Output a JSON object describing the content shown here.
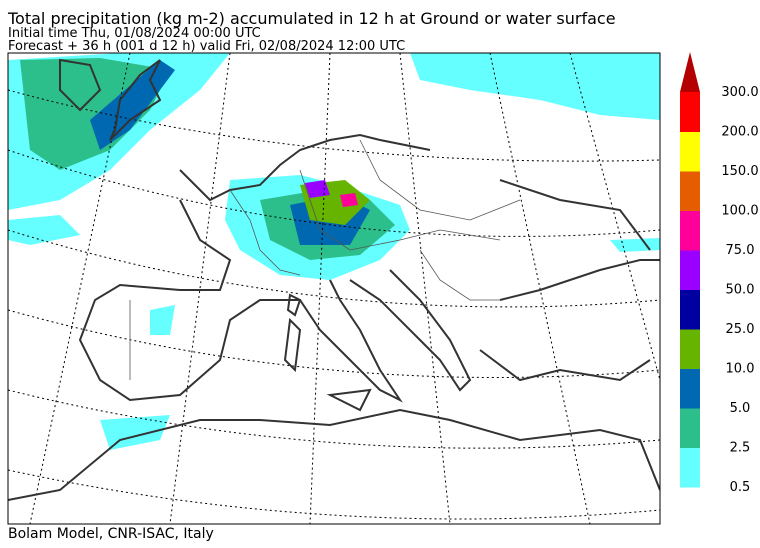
{
  "header": {
    "title": "Total precipitation (kg m-2) accumulated in  12 h at Ground or water surface",
    "line1": "Initial time  Thu, 01/08/2024  00:00 UTC",
    "line2": "Forecast  +  36 h  (001 d 12 h)  valid Fri, 02/08/2024 12:00 UTC"
  },
  "colorbar": {
    "levels": [
      "0.5",
      "2.5",
      "5.0",
      "10.0",
      "25.0",
      "50.0",
      "75.0",
      "100.0",
      "150.0",
      "200.0",
      "300.0"
    ],
    "colors": [
      "#66ffff",
      "#2cbf8c",
      "#0068b0",
      "#66b300",
      "#0000a0",
      "#9900ff",
      "#ff0099",
      "#e65c00",
      "#ffff00",
      "#ff0000"
    ],
    "extend_color": "#b30000"
  },
  "footer": "Bolam Model, CNR-ISAC, Italy"
}
